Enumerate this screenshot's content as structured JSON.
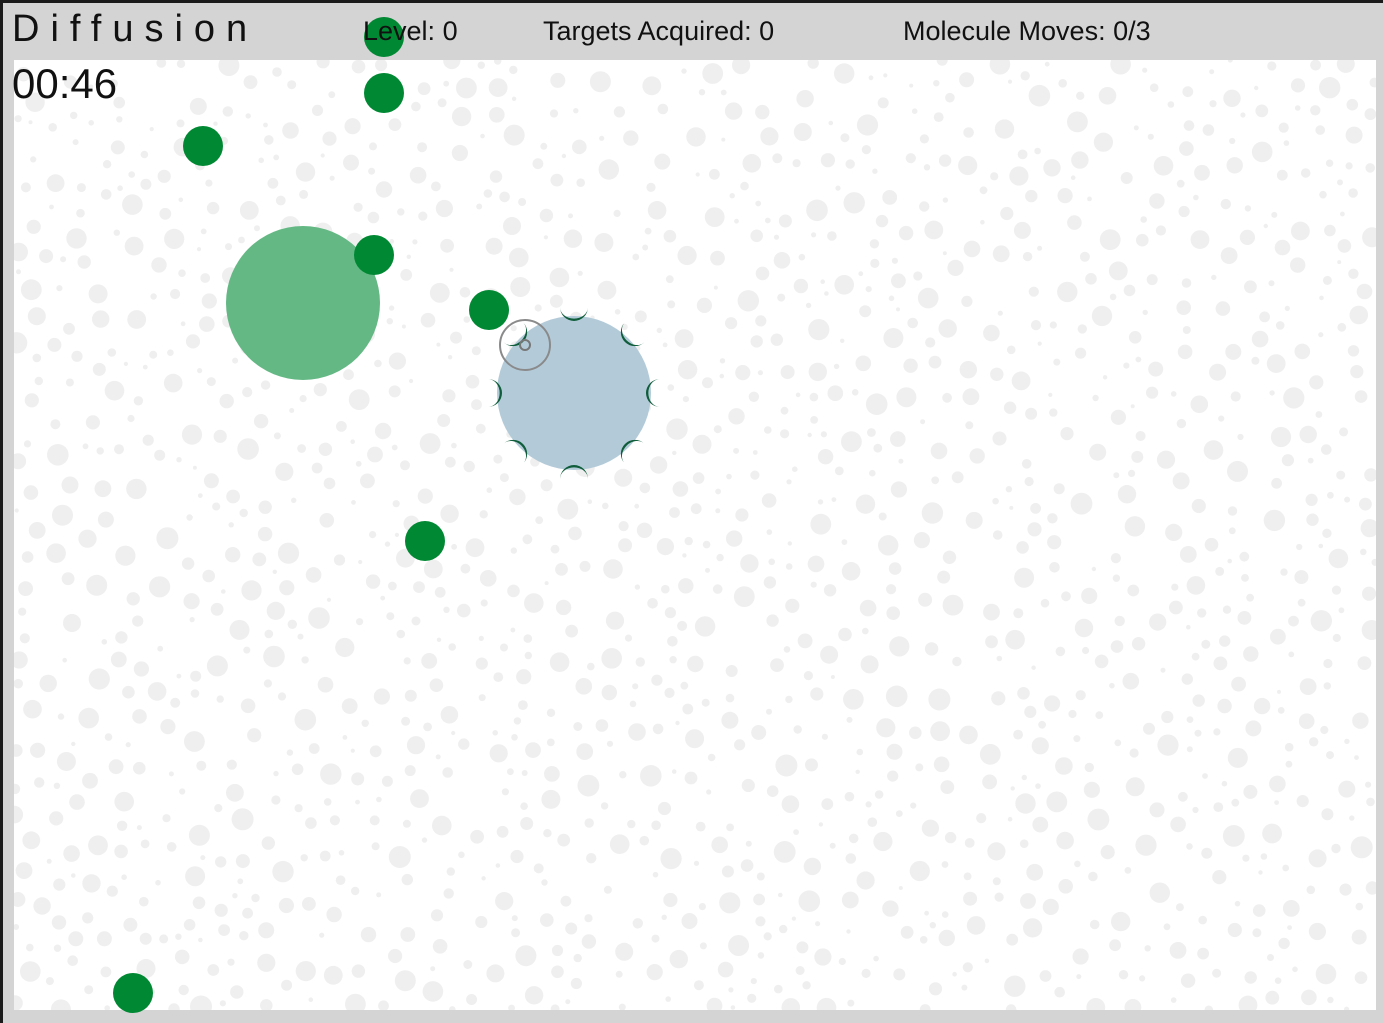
{
  "header": {
    "title": "Diffusion",
    "timer": "00:46",
    "level_label": "Level:",
    "level_value": "0",
    "targets_label": "Targets Acquired:",
    "targets_value": "0",
    "moves_label": "Molecule Moves:",
    "moves_value": "0/3"
  },
  "colors": {
    "frame": "#d4d4d4",
    "background": "#ffffff",
    "particle": "#efefef",
    "molecule": "#008833",
    "molecule_faded": "#64b884",
    "cell": "#b3cbd9",
    "receptor": "#0f5d3b",
    "cursor": "#8a8a8a"
  },
  "game": {
    "molecule_count": 8,
    "faded_molecule_count": 1,
    "cell_receptor_count": 8
  }
}
